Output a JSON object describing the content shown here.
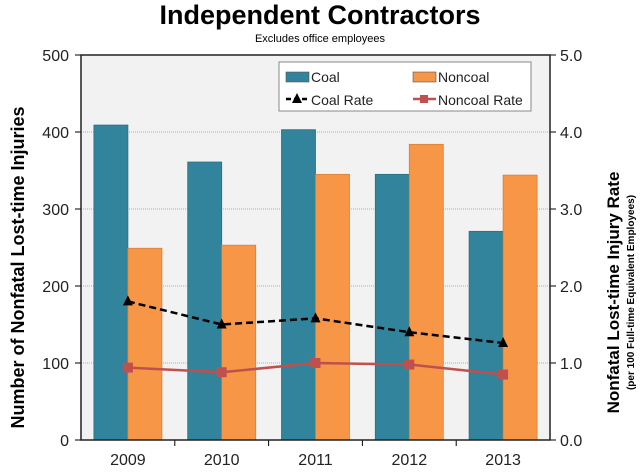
{
  "chart_data": {
    "type": "bar",
    "title": "Independent Contractors",
    "subtitle": "Excludes office employees",
    "categories": [
      "2009",
      "2010",
      "2011",
      "2012",
      "2013"
    ],
    "ylabel": "Number of Nonfatal Lost-time Injuries",
    "y2label": "Nonfatal Lost-time Injury Rate",
    "y2sublabel": "(per 100 Full-time Equivalent Employees)",
    "ylim": [
      0,
      500
    ],
    "y2lim": [
      0,
      5
    ],
    "yticks": [
      "0",
      "100",
      "200",
      "300",
      "400",
      "500"
    ],
    "y2ticks": [
      "0.0",
      "1.0",
      "2.0",
      "3.0",
      "4.0",
      "5.0"
    ],
    "grid": true,
    "legend": "top-right",
    "series": [
      {
        "name": "Coal",
        "type": "bar",
        "axis": "left",
        "color": "#31849b",
        "values": [
          409,
          361,
          403,
          345,
          271
        ]
      },
      {
        "name": "Noncoal",
        "type": "bar",
        "axis": "left",
        "color": "#f79646",
        "values": [
          249,
          253,
          345,
          384,
          344
        ]
      },
      {
        "name": "Coal Rate",
        "type": "line",
        "axis": "right",
        "color": "#000000",
        "dash": true,
        "marker": "triangle",
        "values": [
          1.8,
          1.5,
          1.58,
          1.4,
          1.26
        ]
      },
      {
        "name": "Noncoal Rate",
        "type": "line",
        "axis": "right",
        "color": "#c0504d",
        "marker": "square",
        "values": [
          0.94,
          0.88,
          1.0,
          0.98,
          0.85
        ]
      }
    ]
  }
}
